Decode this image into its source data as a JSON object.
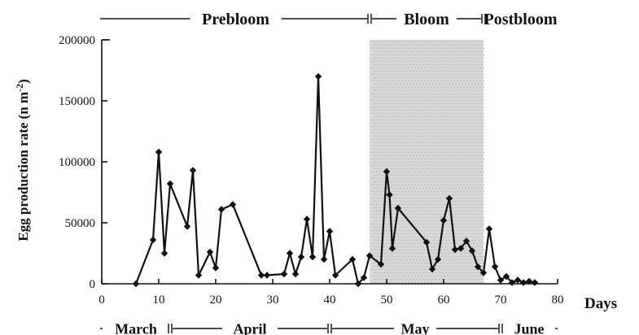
{
  "chart_data": {
    "type": "line",
    "xlabel": "Days",
    "ylabel": "Egg production rate (n m",
    "ylabel_sup": "-2",
    "ylabel_close": ")",
    "xlim": [
      0,
      80
    ],
    "ylim": [
      0,
      200000
    ],
    "x_ticks": [
      0,
      10,
      20,
      30,
      40,
      50,
      60,
      70,
      80
    ],
    "y_ticks": [
      0,
      50000,
      100000,
      150000,
      200000
    ],
    "bloom_shading": [
      47,
      67
    ],
    "phases": [
      {
        "label": "Prebloom",
        "start": 0,
        "end": 47
      },
      {
        "label": "Bloom",
        "start": 47,
        "end": 67
      },
      {
        "label": "Postbloom",
        "start": 67,
        "end": 80
      }
    ],
    "months": [
      {
        "label": "March",
        "start": 0,
        "end": 12
      },
      {
        "label": "April",
        "start": 12,
        "end": 40
      },
      {
        "label": "May",
        "start": 40,
        "end": 70
      },
      {
        "label": "June",
        "start": 70,
        "end": 80
      }
    ],
    "series": [
      {
        "x": [
          6,
          9,
          10,
          11,
          12,
          15,
          16,
          17,
          19,
          20,
          21,
          23,
          28,
          29,
          32,
          33,
          34,
          35,
          36,
          37,
          38,
          39,
          40,
          41,
          44,
          45,
          46,
          47,
          49,
          50,
          50.5,
          51,
          52,
          57,
          58,
          59,
          60,
          61,
          62,
          63,
          64,
          65,
          66,
          67,
          68,
          69,
          70,
          71,
          72,
          73,
          74,
          75,
          76
        ],
        "y": [
          0,
          36000,
          108000,
          25000,
          82000,
          47000,
          93000,
          7000,
          26000,
          13000,
          61000,
          65000,
          7000,
          7000,
          8000,
          25000,
          8000,
          22000,
          53000,
          22000,
          170000,
          20000,
          43000,
          7000,
          20000,
          0,
          5000,
          23000,
          16000,
          92000,
          73000,
          29000,
          62000,
          34000,
          12000,
          20000,
          52000,
          70000,
          28000,
          29000,
          35000,
          27000,
          14000,
          9000,
          45000,
          14000,
          3000,
          6000,
          1000,
          3000,
          1000,
          2000,
          1000
        ]
      }
    ]
  }
}
